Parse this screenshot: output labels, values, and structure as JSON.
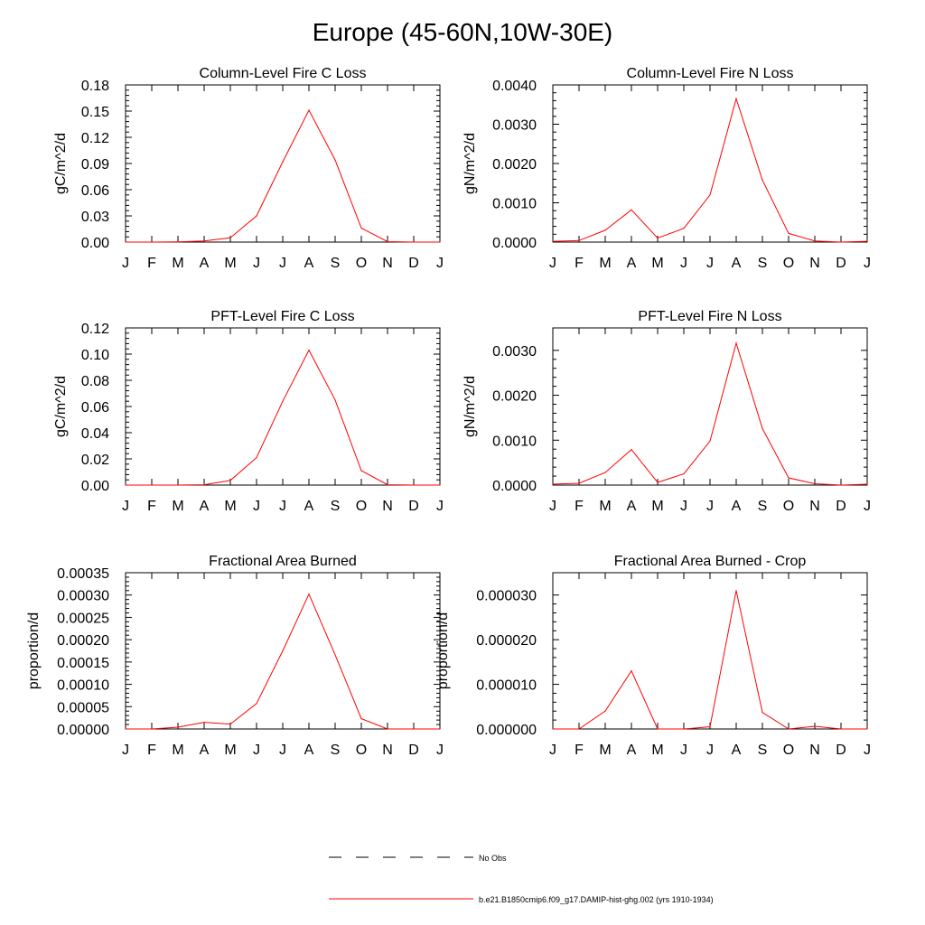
{
  "figure": {
    "title": "Europe (45-60N,10W-30E)"
  },
  "style": {
    "series_color": "#ff0000",
    "axis_color": "#000000"
  },
  "legend": {
    "obs_label": "No Obs",
    "model_label": "b.e21.B1850cmip6.f09_g17.DAMIP-hist-ghg.002 (yrs 1910-1934)"
  },
  "chart_data": [
    {
      "type": "line",
      "title": "Column-Level Fire C Loss",
      "ylabel": "gC/m^2/d",
      "categories": [
        "J",
        "F",
        "M",
        "A",
        "M",
        "J",
        "J",
        "A",
        "S",
        "O",
        "N",
        "D",
        "J"
      ],
      "ylim": [
        0,
        0.18
      ],
      "yticks": [
        "0.00",
        "0.03",
        "0.06",
        "0.09",
        "0.12",
        "0.15",
        "0.18"
      ],
      "series": [
        {
          "values": [
            0.0,
            0.0,
            0.0003,
            0.0012,
            0.005,
            0.03,
            0.092,
            0.151,
            0.094,
            0.016,
            0.0005,
            0.0,
            0.0
          ]
        }
      ]
    },
    {
      "type": "line",
      "title": "Column-Level Fire N Loss",
      "ylabel": "gN/m^2/d",
      "categories": [
        "J",
        "F",
        "M",
        "A",
        "M",
        "J",
        "J",
        "A",
        "S",
        "O",
        "N",
        "D",
        "J"
      ],
      "ylim": [
        0,
        0.004
      ],
      "yticks": [
        "0.0000",
        "0.0010",
        "0.0020",
        "0.0030",
        "0.0040"
      ],
      "series": [
        {
          "values": [
            2e-05,
            4e-05,
            0.0003,
            0.00082,
            0.0001,
            0.00035,
            0.0012,
            0.00365,
            0.00158,
            0.00022,
            3e-05,
            0.0,
            2e-05
          ]
        }
      ]
    },
    {
      "type": "line",
      "title": "PFT-Level Fire C Loss",
      "ylabel": "gC/m^2/d",
      "categories": [
        "J",
        "F",
        "M",
        "A",
        "M",
        "J",
        "J",
        "A",
        "S",
        "O",
        "N",
        "D",
        "J"
      ],
      "ylim": [
        0,
        0.12
      ],
      "yticks": [
        "0.00",
        "0.02",
        "0.04",
        "0.06",
        "0.08",
        "0.10",
        "0.12"
      ],
      "series": [
        {
          "values": [
            0.0,
            0.0,
            0.0,
            0.0003,
            0.0035,
            0.021,
            0.064,
            0.103,
            0.065,
            0.011,
            0.0003,
            0.0,
            0.0
          ]
        }
      ]
    },
    {
      "type": "line",
      "title": "PFT-Level Fire N Loss",
      "ylabel": "gN/m^2/d",
      "categories": [
        "J",
        "F",
        "M",
        "A",
        "M",
        "J",
        "J",
        "A",
        "S",
        "O",
        "N",
        "D",
        "J"
      ],
      "ylim": [
        0,
        0.0035
      ],
      "yticks": [
        "0.0000",
        "0.0010",
        "0.0020",
        "0.0030"
      ],
      "ytick_values": [
        0,
        0.001,
        0.002,
        0.003
      ],
      "series": [
        {
          "values": [
            2e-05,
            4e-05,
            0.00028,
            0.00079,
            6e-05,
            0.00025,
            0.00098,
            0.00316,
            0.00126,
            0.00016,
            3e-05,
            0.0,
            2e-05
          ]
        }
      ]
    },
    {
      "type": "line",
      "title": "Fractional Area Burned",
      "ylabel": "proportion/d",
      "categories": [
        "J",
        "F",
        "M",
        "A",
        "M",
        "J",
        "J",
        "A",
        "S",
        "O",
        "N",
        "D",
        "J"
      ],
      "ylim": [
        0,
        0.00035
      ],
      "yticks": [
        "0.00000",
        "0.00005",
        "0.00010",
        "0.00015",
        "0.00020",
        "0.00025",
        "0.00030",
        "0.00035"
      ],
      "series": [
        {
          "values": [
            0.0,
            0.0,
            4e-06,
            1.5e-05,
            1.1e-05,
            5.7e-05,
            0.000175,
            0.000302,
            0.000166,
            2.3e-05,
            0.0,
            0.0,
            0.0
          ]
        }
      ]
    },
    {
      "type": "line",
      "title": "Fractional Area Burned - Crop",
      "ylabel": "proportion/d",
      "categories": [
        "J",
        "F",
        "M",
        "A",
        "M",
        "J",
        "J",
        "A",
        "S",
        "O",
        "N",
        "D",
        "J"
      ],
      "ylim": [
        0,
        3.5e-05
      ],
      "yticks": [
        "0.000000",
        "0.000010",
        "0.000020",
        "0.000030"
      ],
      "ytick_values": [
        0,
        1e-05,
        2e-05,
        3e-05
      ],
      "series": [
        {
          "values": [
            0.0,
            0.0,
            4e-06,
            1.3e-05,
            0.0,
            0.0,
            5e-07,
            3.1e-05,
            3.7e-06,
            0.0,
            6e-07,
            0.0,
            0.0
          ]
        }
      ]
    }
  ]
}
